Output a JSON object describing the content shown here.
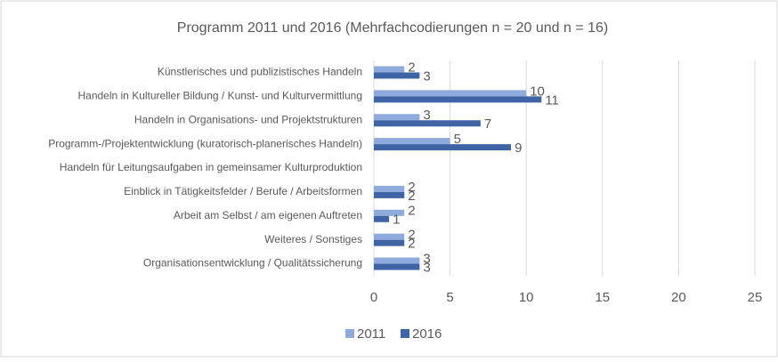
{
  "chart_data": {
    "type": "bar",
    "orientation": "horizontal",
    "title": "Programm 2011 und 2016 (Mehrfachcodierungen n = 20 und n = 16)",
    "categories": [
      "Künstlerisches und publizistisches Handeln",
      "Handeln in Kultureller Bildung / Kunst- und Kulturvermittlung",
      "Handeln in Organisations- und Projektstrukturen",
      "Programm-/Projektentwicklung (kuratorisch-planerisches Handeln)",
      "Handeln für Leitungsaufgaben in gemeinsamer Kulturproduktion",
      "Einblick in Tätigkeitsfelder / Berufe / Arbeitsformen",
      "Arbeit am Selbst / am eigenen Auftreten",
      "Weiteres / Sonstiges",
      "Organisationsentwicklung / Qualitätssicherung"
    ],
    "series": [
      {
        "name": "2011",
        "color": "#8faadc",
        "values": [
          2,
          10,
          3,
          5,
          null,
          2,
          2,
          2,
          3
        ]
      },
      {
        "name": "2016",
        "color": "#3f64a6",
        "values": [
          3,
          11,
          7,
          9,
          null,
          2,
          1,
          2,
          3
        ]
      }
    ],
    "xlim": [
      0,
      25
    ],
    "xticks": [
      0,
      5,
      10,
      15,
      20,
      25
    ],
    "grid": true,
    "legend": "bottom"
  }
}
